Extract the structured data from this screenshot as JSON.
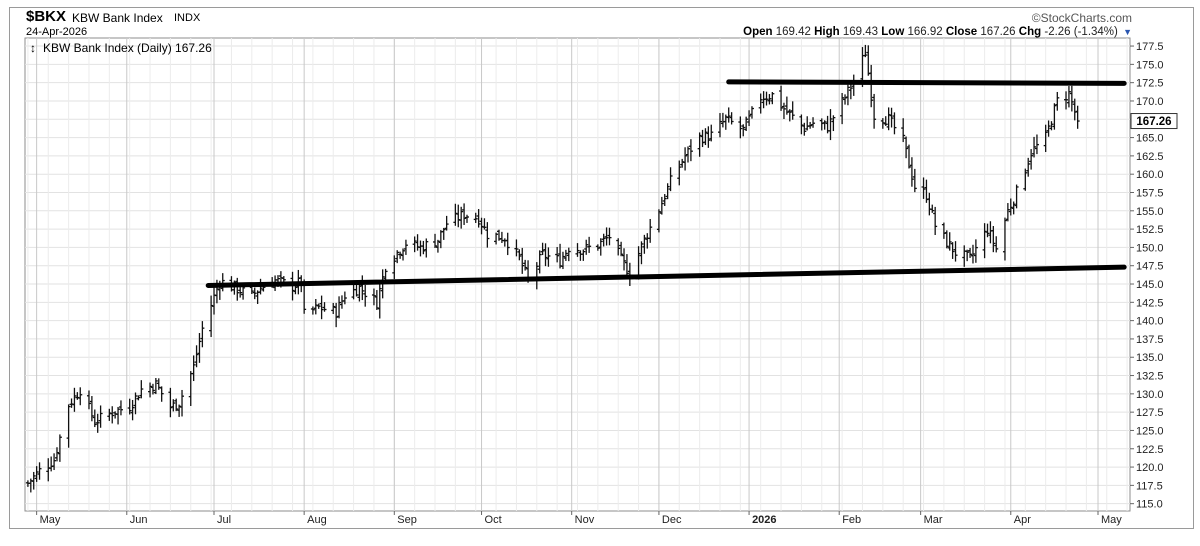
{
  "header": {
    "symbol": "$BKX",
    "name": "KBW Bank Index",
    "exchange": "INDX",
    "date": "24-Apr-2026",
    "brand": "©StockCharts.com",
    "open_label": "Open",
    "open": "169.42",
    "high_label": "High",
    "high": "169.43",
    "low_label": "Low",
    "low": "166.92",
    "close_label": "Close",
    "close": "167.26",
    "chg_label": "Chg",
    "chg": "-2.26 (-1.34%)"
  },
  "chart_data": {
    "type": "ohlc",
    "title": "KBW Bank Index (Daily) 167.26",
    "series_glyph": "↕",
    "last_value_label": "167.26",
    "last_value": 167.26,
    "ylim": [
      114.0,
      178.6
    ],
    "y_ticks": [
      115.0,
      117.5,
      120.0,
      122.5,
      125.0,
      127.5,
      130.0,
      132.5,
      135.0,
      137.5,
      140.0,
      142.5,
      145.0,
      147.5,
      150.0,
      152.5,
      155.0,
      157.5,
      160.0,
      162.5,
      165.0,
      167.5,
      170.0,
      172.5,
      175.0,
      177.5
    ],
    "x_ticks": [
      {
        "date": "2025-05-01",
        "label": "May",
        "bold": false
      },
      {
        "date": "2025-06-01",
        "label": "Jun",
        "bold": false
      },
      {
        "date": "2025-07-01",
        "label": "Jul",
        "bold": false
      },
      {
        "date": "2025-08-01",
        "label": "Aug",
        "bold": false
      },
      {
        "date": "2025-09-01",
        "label": "Sep",
        "bold": false
      },
      {
        "date": "2025-10-01",
        "label": "Oct",
        "bold": false
      },
      {
        "date": "2025-11-01",
        "label": "Nov",
        "bold": false
      },
      {
        "date": "2025-12-01",
        "label": "Dec",
        "bold": false
      },
      {
        "date": "2026-01-01",
        "label": "2026",
        "bold": true
      },
      {
        "date": "2026-02-01",
        "label": "Feb",
        "bold": false
      },
      {
        "date": "2026-03-01",
        "label": "Mar",
        "bold": false
      },
      {
        "date": "2026-04-01",
        "label": "Apr",
        "bold": false
      },
      {
        "date": "2026-05-01",
        "label": "May",
        "bold": false
      }
    ],
    "x_range": [
      "2025-04-27",
      "2026-05-12"
    ],
    "grid": true,
    "anchors": [
      [
        "2025-04-28",
        117.8
      ],
      [
        "2025-05-02",
        119.5
      ],
      [
        "2025-05-07",
        121.0
      ],
      [
        "2025-05-12",
        128.5
      ],
      [
        "2025-05-16",
        130.6
      ],
      [
        "2025-05-21",
        126.2
      ],
      [
        "2025-05-27",
        127.5
      ],
      [
        "2025-06-02",
        128.3
      ],
      [
        "2025-06-06",
        130.6
      ],
      [
        "2025-06-11",
        131.3
      ],
      [
        "2025-06-16",
        128.2
      ],
      [
        "2025-06-19",
        128.8
      ],
      [
        "2025-06-24",
        133.7
      ],
      [
        "2025-06-27",
        138.9
      ],
      [
        "2025-07-03",
        145.4
      ],
      [
        "2025-07-08",
        144.5
      ],
      [
        "2025-07-14",
        143.4
      ],
      [
        "2025-07-17",
        144.5
      ],
      [
        "2025-07-22",
        145.5
      ],
      [
        "2025-07-28",
        144.7
      ],
      [
        "2025-07-31",
        145.3
      ],
      [
        "2025-08-01",
        140.8
      ],
      [
        "2025-08-06",
        141.8
      ],
      [
        "2025-08-12",
        141.2
      ],
      [
        "2025-08-15",
        143.5
      ],
      [
        "2025-08-20",
        144.5
      ],
      [
        "2025-08-26",
        142.5
      ],
      [
        "2025-08-29",
        147.5
      ],
      [
        "2025-09-05",
        150.6
      ],
      [
        "2025-09-10",
        150.0
      ],
      [
        "2025-09-16",
        151.0
      ],
      [
        "2025-09-19",
        153.3
      ],
      [
        "2025-09-25",
        154.5
      ],
      [
        "2025-09-30",
        154.0
      ],
      [
        "2025-10-03",
        151.8
      ],
      [
        "2025-10-09",
        151.3
      ],
      [
        "2025-10-14",
        148.5
      ],
      [
        "2025-10-17",
        145.5
      ],
      [
        "2025-10-22",
        149.0
      ],
      [
        "2025-10-28",
        148.2
      ],
      [
        "2025-10-31",
        150.0
      ],
      [
        "2025-11-05",
        149.7
      ],
      [
        "2025-11-10",
        150.3
      ],
      [
        "2025-11-14",
        151.5
      ],
      [
        "2025-11-18",
        148.3
      ],
      [
        "2025-11-21",
        146.5
      ],
      [
        "2025-11-26",
        151.0
      ],
      [
        "2025-12-01",
        155.2
      ],
      [
        "2025-12-05",
        159.0
      ],
      [
        "2025-12-10",
        162.5
      ],
      [
        "2025-12-15",
        165.0
      ],
      [
        "2025-12-19",
        165.3
      ],
      [
        "2025-12-24",
        167.5
      ],
      [
        "2025-12-30",
        166.0
      ],
      [
        "2026-01-05",
        170.5
      ],
      [
        "2026-01-09",
        170.8
      ],
      [
        "2026-01-14",
        168.5
      ],
      [
        "2026-01-20",
        166.3
      ],
      [
        "2026-01-23",
        167.0
      ],
      [
        "2026-01-28",
        166.5
      ],
      [
        "2026-02-03",
        170.5
      ],
      [
        "2026-02-07",
        173.5
      ],
      [
        "2026-02-10",
        176.7
      ],
      [
        "2026-02-13",
        168.0
      ],
      [
        "2026-02-18",
        167.5
      ],
      [
        "2026-02-23",
        164.5
      ],
      [
        "2026-02-27",
        158.3
      ],
      [
        "2026-03-03",
        157.2
      ],
      [
        "2026-03-06",
        153.0
      ],
      [
        "2026-03-10",
        150.7
      ],
      [
        "2026-03-13",
        149.3
      ],
      [
        "2026-03-18",
        148.4
      ],
      [
        "2026-03-24",
        152.5
      ],
      [
        "2026-03-27",
        149.8
      ],
      [
        "2026-03-31",
        155.0
      ],
      [
        "2026-04-03",
        157.5
      ],
      [
        "2026-04-08",
        163.0
      ],
      [
        "2026-04-13",
        165.0
      ],
      [
        "2026-04-17",
        170.0
      ],
      [
        "2026-04-21",
        171.0
      ],
      [
        "2026-04-24",
        167.26
      ]
    ],
    "trendlines": [
      {
        "name": "resistance",
        "x1": "2025-12-25",
        "y1": 172.6,
        "x2": "2026-05-10",
        "y2": 172.4
      },
      {
        "name": "support",
        "x1": "2025-06-29",
        "y1": 144.8,
        "x2": "2026-05-10",
        "y2": 147.3
      }
    ]
  }
}
